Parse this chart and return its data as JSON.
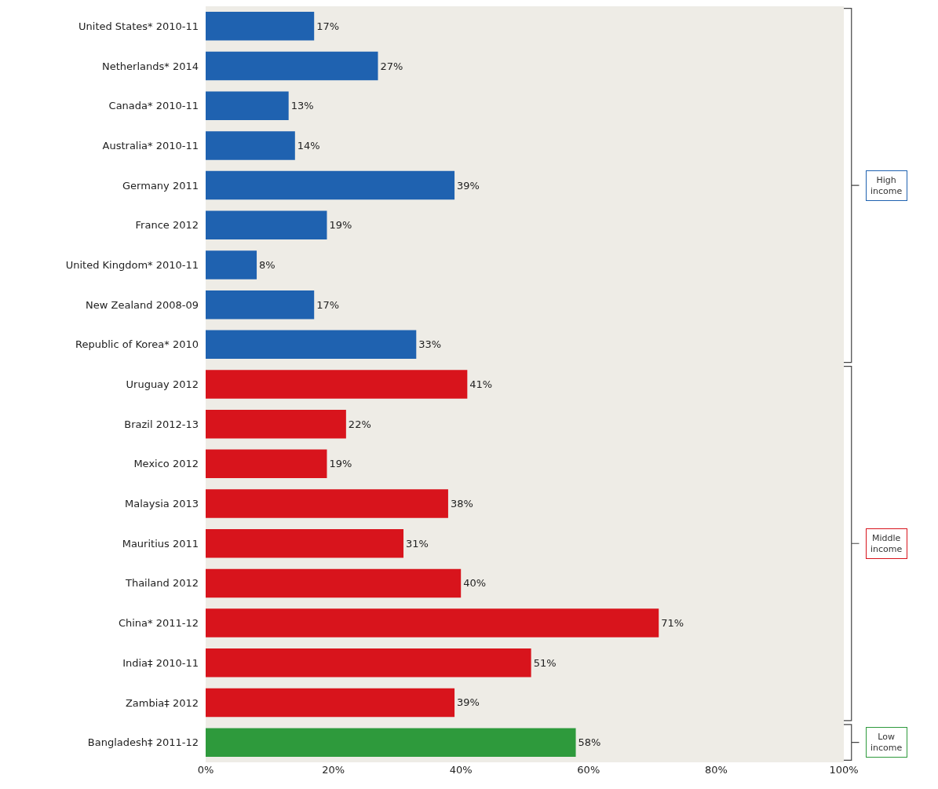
{
  "chart_data": {
    "type": "bar",
    "orientation": "horizontal",
    "categories": [
      "United States* 2010-11",
      "Netherlands* 2014",
      "Canada* 2010-11",
      "Australia* 2010-11",
      "Germany 2011",
      "France 2012",
      "United Kingdom* 2010-11",
      "New Zealand 2008-09",
      "Republic of Korea* 2010",
      "Uruguay 2012",
      "Brazil 2012-13",
      "Mexico 2012",
      "Malaysia 2013",
      "Mauritius 2011",
      "Thailand 2012",
      "China* 2011-12",
      "India‡ 2010-11",
      "Zambia‡ 2012",
      "Bangladesh‡ 2011-12"
    ],
    "series": [
      {
        "name": "High income",
        "color": "#1f62b0",
        "values": [
          17,
          27,
          13,
          14,
          39,
          19,
          8,
          17,
          33,
          null,
          null,
          null,
          null,
          null,
          null,
          null,
          null,
          null,
          null
        ],
        "value_labels": [
          "17%",
          "27%",
          "13%",
          "14%",
          "39%",
          "19%",
          "8%",
          "17%",
          "33%",
          null,
          null,
          null,
          null,
          null,
          null,
          null,
          null,
          null,
          null
        ]
      },
      {
        "name": "Middle income",
        "color": "#d8141c",
        "values": [
          null,
          null,
          null,
          null,
          null,
          null,
          null,
          null,
          null,
          41,
          22,
          19,
          38,
          31,
          40,
          71,
          51,
          39,
          null
        ],
        "value_labels": [
          null,
          null,
          null,
          null,
          null,
          null,
          null,
          null,
          null,
          "41%",
          "22%",
          "19%",
          "38%",
          "31%",
          "40%",
          "71%",
          "51%",
          "39%",
          null
        ]
      },
      {
        "name": "Low income",
        "color": "#2e9a3c",
        "values": [
          null,
          null,
          null,
          null,
          null,
          null,
          null,
          null,
          null,
          null,
          null,
          null,
          null,
          null,
          null,
          null,
          null,
          null,
          58
        ],
        "value_labels": [
          null,
          null,
          null,
          null,
          null,
          null,
          null,
          null,
          null,
          null,
          null,
          null,
          null,
          null,
          null,
          null,
          null,
          null,
          "58%"
        ]
      }
    ],
    "xlim": [
      0,
      100
    ],
    "xticks": [
      {
        "value": 0,
        "label": "0%"
      },
      {
        "value": 20,
        "label": "20%"
      },
      {
        "value": 40,
        "label": "40%"
      },
      {
        "value": 60,
        "label": "60%"
      },
      {
        "value": 80,
        "label": "80%"
      },
      {
        "value": 100,
        "label": "100%"
      }
    ],
    "grid": false,
    "legend": false
  }
}
